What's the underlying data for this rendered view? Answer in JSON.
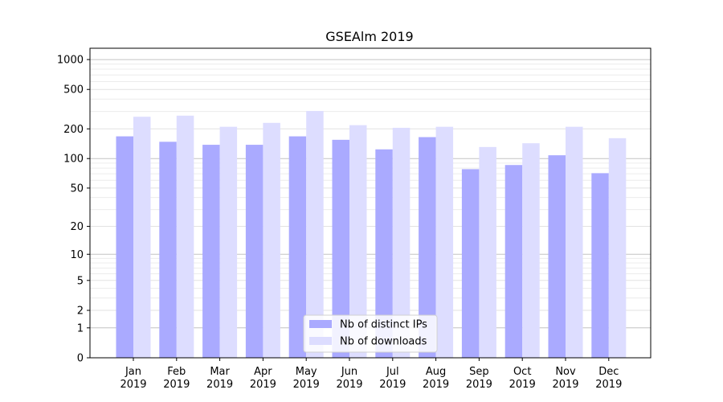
{
  "chart_data": {
    "type": "bar",
    "title": "GSEAlm 2019",
    "xlabel": "",
    "ylabel": "",
    "yscale": "log1p",
    "ylim": [
      0,
      1300
    ],
    "grid": true,
    "legend_position": "bottom-center",
    "categories": [
      [
        "Jan",
        "2019"
      ],
      [
        "Feb",
        "2019"
      ],
      [
        "Mar",
        "2019"
      ],
      [
        "Apr",
        "2019"
      ],
      [
        "May",
        "2019"
      ],
      [
        "Jun",
        "2019"
      ],
      [
        "Jul",
        "2019"
      ],
      [
        "Aug",
        "2019"
      ],
      [
        "Sep",
        "2019"
      ],
      [
        "Oct",
        "2019"
      ],
      [
        "Nov",
        "2019"
      ],
      [
        "Dec",
        "2019"
      ]
    ],
    "yticks": [
      0,
      1,
      2,
      5,
      10,
      20,
      50,
      100,
      200,
      500,
      1000
    ],
    "series": [
      {
        "name": "Nb of distinct IPs",
        "color": "#aaaaff",
        "values": [
          168,
          148,
          138,
          138,
          168,
          155,
          124,
          165,
          78,
          86,
          108,
          71
        ]
      },
      {
        "name": "Nb of downloads",
        "color": "#ddddff",
        "values": [
          265,
          272,
          210,
          230,
          303,
          218,
          205,
          210,
          131,
          143,
          210,
          161
        ]
      }
    ]
  }
}
